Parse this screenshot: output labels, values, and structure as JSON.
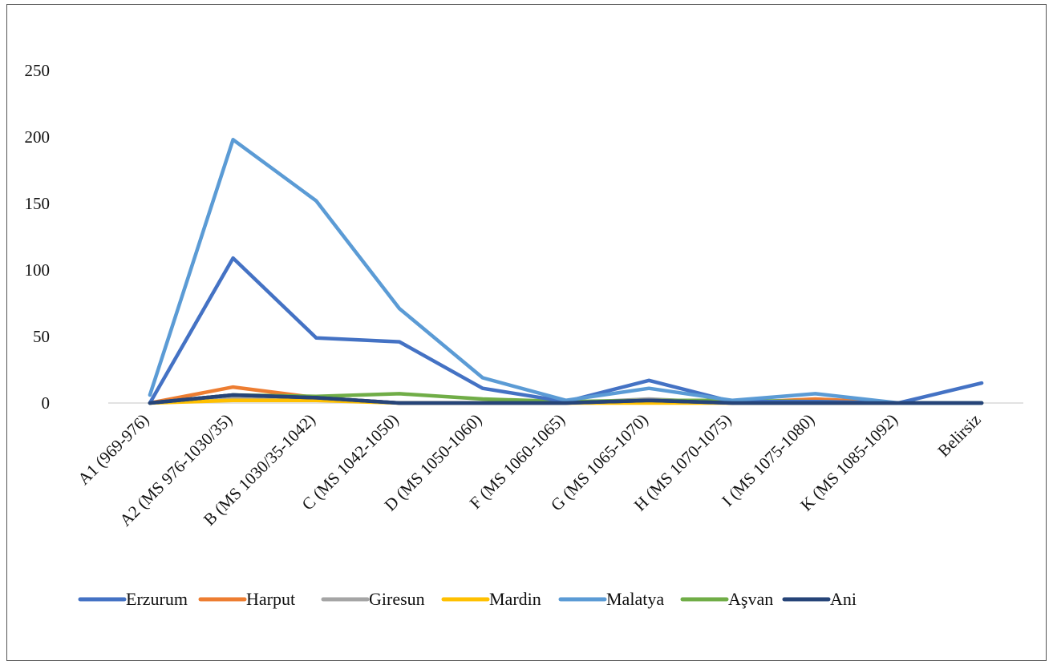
{
  "chart_data": {
    "type": "line",
    "title": "",
    "xlabel": "",
    "ylabel": "",
    "ylim": [
      0,
      250
    ],
    "yticks": [
      0,
      50,
      100,
      150,
      200,
      250
    ],
    "grid": false,
    "legend_position": "bottom",
    "categories": [
      "A1 (969-976)",
      "A2 (MS 976-1030/35)",
      "B (MS 1030/35-1042)",
      "C (MS 1042-1050)",
      "D (MS 1050-1060)",
      "F (MS 1060-1065)",
      "G (MS 1065-1070)",
      "H (MS 1070-1075)",
      "I (MS 1075-1080)",
      "K (MS 1085-1092)",
      "Belirsiz"
    ],
    "series": [
      {
        "name": "Erzurum",
        "color": "#4472C4",
        "values": [
          0,
          109,
          49,
          46,
          11,
          1,
          17,
          1,
          1,
          0,
          15
        ]
      },
      {
        "name": "Harput",
        "color": "#ED7D31",
        "values": [
          0,
          12,
          4,
          0,
          0,
          0,
          1,
          0,
          3,
          0,
          0
        ]
      },
      {
        "name": "Giresun",
        "color": "#A5A5A5",
        "values": [
          0,
          4,
          3,
          0,
          0,
          0,
          3,
          0,
          0,
          0,
          0
        ]
      },
      {
        "name": "Mardin",
        "color": "#FFC000",
        "values": [
          0,
          2,
          2,
          0,
          0,
          0,
          0,
          0,
          0,
          0,
          0
        ]
      },
      {
        "name": "Malatya",
        "color": "#5B9BD5",
        "values": [
          6,
          198,
          152,
          71,
          19,
          2,
          11,
          2,
          7,
          0,
          0
        ]
      },
      {
        "name": "Aşvan",
        "color": "#70AD47",
        "values": [
          0,
          6,
          5,
          7,
          3,
          1,
          2,
          2,
          1,
          0,
          0
        ]
      },
      {
        "name": "Ani",
        "color": "#264478",
        "values": [
          0,
          6,
          4,
          0,
          0,
          0,
          2,
          0,
          0,
          0,
          0
        ]
      }
    ]
  }
}
